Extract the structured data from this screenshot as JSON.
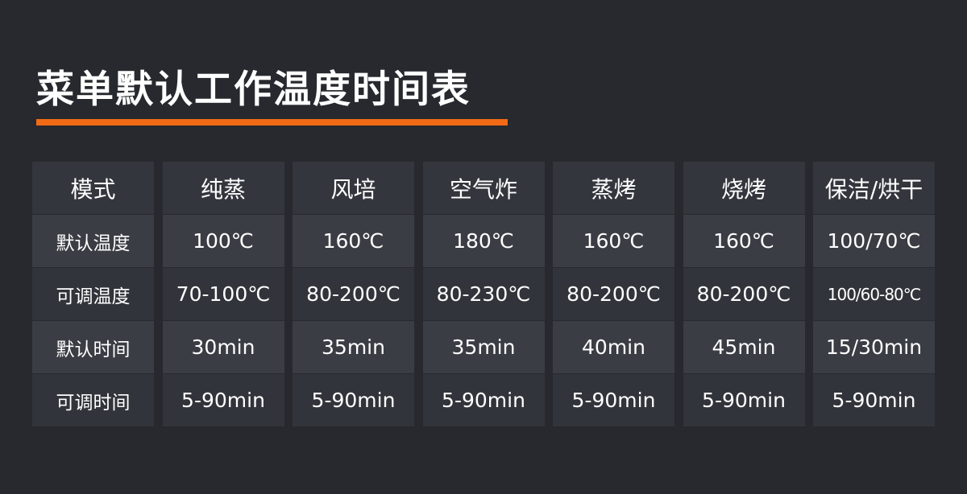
{
  "title": "菜单默认工作温度时间表",
  "accent_color": "#f26a16",
  "table": {
    "headers": [
      "模式",
      "纯蒸",
      "风培",
      "空气炸",
      "蒸烤",
      "烧烤",
      "保洁/烘干"
    ],
    "rows": [
      [
        "默认温度",
        "100℃",
        "160℃",
        "180℃",
        "160℃",
        "160℃",
        "100/70℃"
      ],
      [
        "可调温度",
        "70-100℃",
        "80-200℃",
        "80-230℃",
        "80-200℃",
        "80-200℃",
        "100/60-80℃"
      ],
      [
        "默认时间",
        "30min",
        "35min",
        "35min",
        "40min",
        "45min",
        "15/30min"
      ],
      [
        "可调时间",
        "5-90min",
        "5-90min",
        "5-90min",
        "5-90min",
        "5-90min",
        "5-90min"
      ]
    ]
  }
}
